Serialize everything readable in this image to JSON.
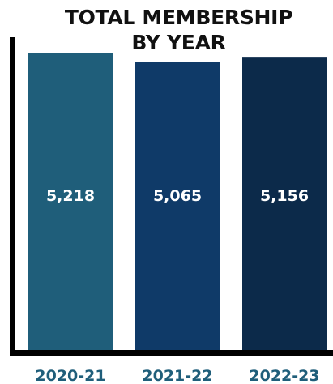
{
  "chart_data": {
    "type": "bar",
    "title_line1": "TOTAL MEMBERSHIP",
    "title_line2": "BY YEAR",
    "categories": [
      "2020-21",
      "2021-22",
      "2022-23"
    ],
    "values": [
      5218,
      5065,
      5156
    ],
    "value_labels": [
      "5,218",
      "5,065",
      "5,156"
    ],
    "bar_colors": [
      "#1f5e7a",
      "#0f3a68",
      "#0c2a4a"
    ],
    "tick_label_color": "#1f5e7a",
    "axis_color": "#000000",
    "ylim": [
      0,
      5500
    ],
    "grid": false,
    "legend": "none"
  }
}
